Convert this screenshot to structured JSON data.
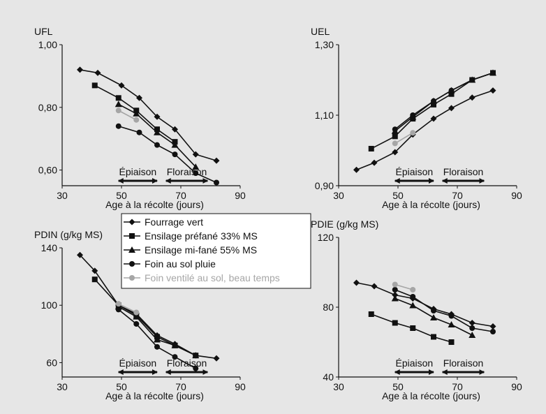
{
  "legend": {
    "entries": [
      {
        "label": "Fourrage vert",
        "marker": "diamond",
        "color": "#111111"
      },
      {
        "label": "Ensilage préfané 33% MS",
        "marker": "square",
        "color": "#111111"
      },
      {
        "label": "Ensilage mi-fané 55% MS",
        "marker": "triangle",
        "color": "#111111"
      },
      {
        "label": "Foin au sol pluie",
        "marker": "circle",
        "color": "#111111"
      },
      {
        "label": "Foin ventilé au sol, beau temps",
        "marker": "circle",
        "color": "#a6a6a6"
      }
    ]
  },
  "chart_data": [
    {
      "type": "line",
      "title": "UFL",
      "xlabel": "Age à la récolte (jours)",
      "ylabel": "UFL",
      "xlim": [
        30,
        90
      ],
      "ylim": [
        0.55,
        1.0
      ],
      "xticks": [
        "30",
        "50",
        "70",
        "90"
      ],
      "yticks": [
        {
          "v": 1.0,
          "t": "1,00"
        },
        {
          "v": 0.8,
          "t": "0,80"
        },
        {
          "v": 0.6,
          "t": "0,60"
        }
      ],
      "periods": [
        {
          "label": "Épiaison",
          "from": 49,
          "to": 62
        },
        {
          "label": "Floraison",
          "from": 65,
          "to": 79
        }
      ],
      "series": [
        {
          "name": "Fourrage vert",
          "x": [
            36,
            42,
            50,
            56,
            62,
            68,
            75,
            82
          ],
          "y": [
            0.92,
            0.91,
            0.87,
            0.83,
            0.77,
            0.73,
            0.65,
            0.63
          ]
        },
        {
          "name": "Ensilage préfané 33% MS",
          "x": [
            41,
            49,
            55,
            62,
            68
          ],
          "y": [
            0.87,
            0.83,
            0.79,
            0.73,
            0.69
          ]
        },
        {
          "name": "Ensilage mi-fané 55% MS",
          "x": [
            49,
            55,
            62,
            68,
            75
          ],
          "y": [
            0.81,
            0.78,
            0.72,
            0.68,
            0.61
          ]
        },
        {
          "name": "Foin au sol pluie",
          "x": [
            49,
            56,
            62,
            68,
            75,
            82
          ],
          "y": [
            0.74,
            0.72,
            0.68,
            0.65,
            0.59,
            0.56
          ]
        },
        {
          "name": "Foin ventilé au sol, beau temps",
          "x": [
            49,
            55
          ],
          "y": [
            0.79,
            0.76
          ]
        }
      ]
    },
    {
      "type": "line",
      "title": "UEL",
      "xlabel": "Age à la récolte (jours)",
      "ylabel": "UEL",
      "xlim": [
        30,
        90
      ],
      "ylim": [
        0.9,
        1.3
      ],
      "xticks": [
        "30",
        "50",
        "70",
        "90"
      ],
      "yticks": [
        {
          "v": 1.3,
          "t": "1,30"
        },
        {
          "v": 1.1,
          "t": "1,10"
        },
        {
          "v": 0.9,
          "t": "0,90"
        }
      ],
      "periods": [
        {
          "label": "Épiaison",
          "from": 49,
          "to": 62
        },
        {
          "label": "Floraison",
          "from": 65,
          "to": 79
        }
      ],
      "series": [
        {
          "name": "Fourrage vert",
          "x": [
            36,
            42,
            49,
            55,
            62,
            68,
            75,
            82
          ],
          "y": [
            0.945,
            0.965,
            0.995,
            1.045,
            1.09,
            1.12,
            1.15,
            1.17
          ]
        },
        {
          "name": "Ensilage préfané 33% MS",
          "x": [
            41,
            49,
            55,
            62,
            68,
            75,
            82
          ],
          "y": [
            1.005,
            1.04,
            1.09,
            1.13,
            1.16,
            1.2,
            1.22
          ]
        },
        {
          "name": "Ensilage mi-fané 55% MS",
          "x": [
            49,
            55,
            62,
            68,
            75,
            82
          ],
          "y": [
            1.055,
            1.095,
            1.14,
            1.17,
            1.2,
            1.22
          ]
        },
        {
          "name": "Foin au sol pluie",
          "x": [
            49,
            55,
            62,
            68,
            75,
            82
          ],
          "y": [
            1.06,
            1.1,
            1.14,
            1.17,
            1.2,
            1.22
          ]
        },
        {
          "name": "Foin ventilé au sol, beau temps",
          "x": [
            49,
            55
          ],
          "y": [
            1.02,
            1.05
          ]
        }
      ]
    },
    {
      "type": "line",
      "title": "PDIN (g/kg MS)",
      "xlabel": "Age à la récolte (jours)",
      "ylabel": "PDIN (g/kg MS)",
      "xlim": [
        30,
        90
      ],
      "ylim": [
        50,
        140
      ],
      "xticks": [
        "30",
        "50",
        "70",
        "90"
      ],
      "yticks": [
        {
          "v": 140,
          "t": "140"
        },
        {
          "v": 100,
          "t": "100"
        },
        {
          "v": 60,
          "t": "60"
        }
      ],
      "periods": [
        {
          "label": "Épiaison",
          "from": 49,
          "to": 62
        },
        {
          "label": "Floraison",
          "from": 65,
          "to": 79
        }
      ],
      "series": [
        {
          "name": "Fourrage vert",
          "x": [
            36,
            41,
            49,
            55,
            62,
            68,
            75,
            82
          ],
          "y": [
            135,
            124,
            100,
            94,
            79,
            73,
            65,
            63
          ]
        },
        {
          "name": "Ensilage préfané 33% MS",
          "x": [
            41,
            49,
            55,
            62,
            68,
            75
          ],
          "y": [
            118,
            100,
            93,
            78,
            72,
            65
          ]
        },
        {
          "name": "Ensilage mi-fané 55% MS",
          "x": [
            49,
            55,
            62,
            68,
            75
          ],
          "y": [
            99,
            92,
            76,
            72,
            65
          ]
        },
        {
          "name": "Foin au sol pluie",
          "x": [
            49,
            55,
            62,
            68,
            75
          ],
          "y": [
            97,
            87,
            71,
            64,
            56
          ]
        },
        {
          "name": "Foin ventilé au sol, beau temps",
          "x": [
            49,
            55
          ],
          "y": [
            101,
            95
          ]
        }
      ]
    },
    {
      "type": "line",
      "title": "PDIE (g/kg MS)",
      "xlabel": "Age à la récolte (jours)",
      "ylabel": "PDIE (g/kg MS)",
      "xlim": [
        30,
        90
      ],
      "ylim": [
        40,
        120
      ],
      "xticks": [
        "30",
        "50",
        "70",
        "90"
      ],
      "yticks": [
        {
          "v": 120,
          "t": "120"
        },
        {
          "v": 80,
          "t": "80"
        },
        {
          "v": 40,
          "t": "40"
        }
      ],
      "periods": [
        {
          "label": "Épiaison",
          "from": 49,
          "to": 62
        },
        {
          "label": "Floraison",
          "from": 65,
          "to": 79
        }
      ],
      "series": [
        {
          "name": "Fourrage vert",
          "x": [
            36,
            42,
            49,
            55,
            62,
            68,
            75,
            82
          ],
          "y": [
            94,
            92,
            87,
            85,
            79,
            76,
            71,
            69
          ]
        },
        {
          "name": "Ensilage préfané 33% MS",
          "x": [
            41,
            49,
            55,
            62,
            68
          ],
          "y": [
            76,
            71,
            68,
            63,
            60
          ]
        },
        {
          "name": "Ensilage mi-fané 55% MS",
          "x": [
            49,
            55,
            62,
            68,
            75
          ],
          "y": [
            85,
            81,
            74,
            70,
            64
          ]
        },
        {
          "name": "Foin au sol pluie",
          "x": [
            49,
            55,
            62,
            68,
            75,
            82
          ],
          "y": [
            90,
            86,
            78,
            75,
            68,
            66
          ]
        },
        {
          "name": "Foin ventilé au sol, beau temps",
          "x": [
            49,
            55
          ],
          "y": [
            93,
            90
          ]
        }
      ]
    }
  ]
}
